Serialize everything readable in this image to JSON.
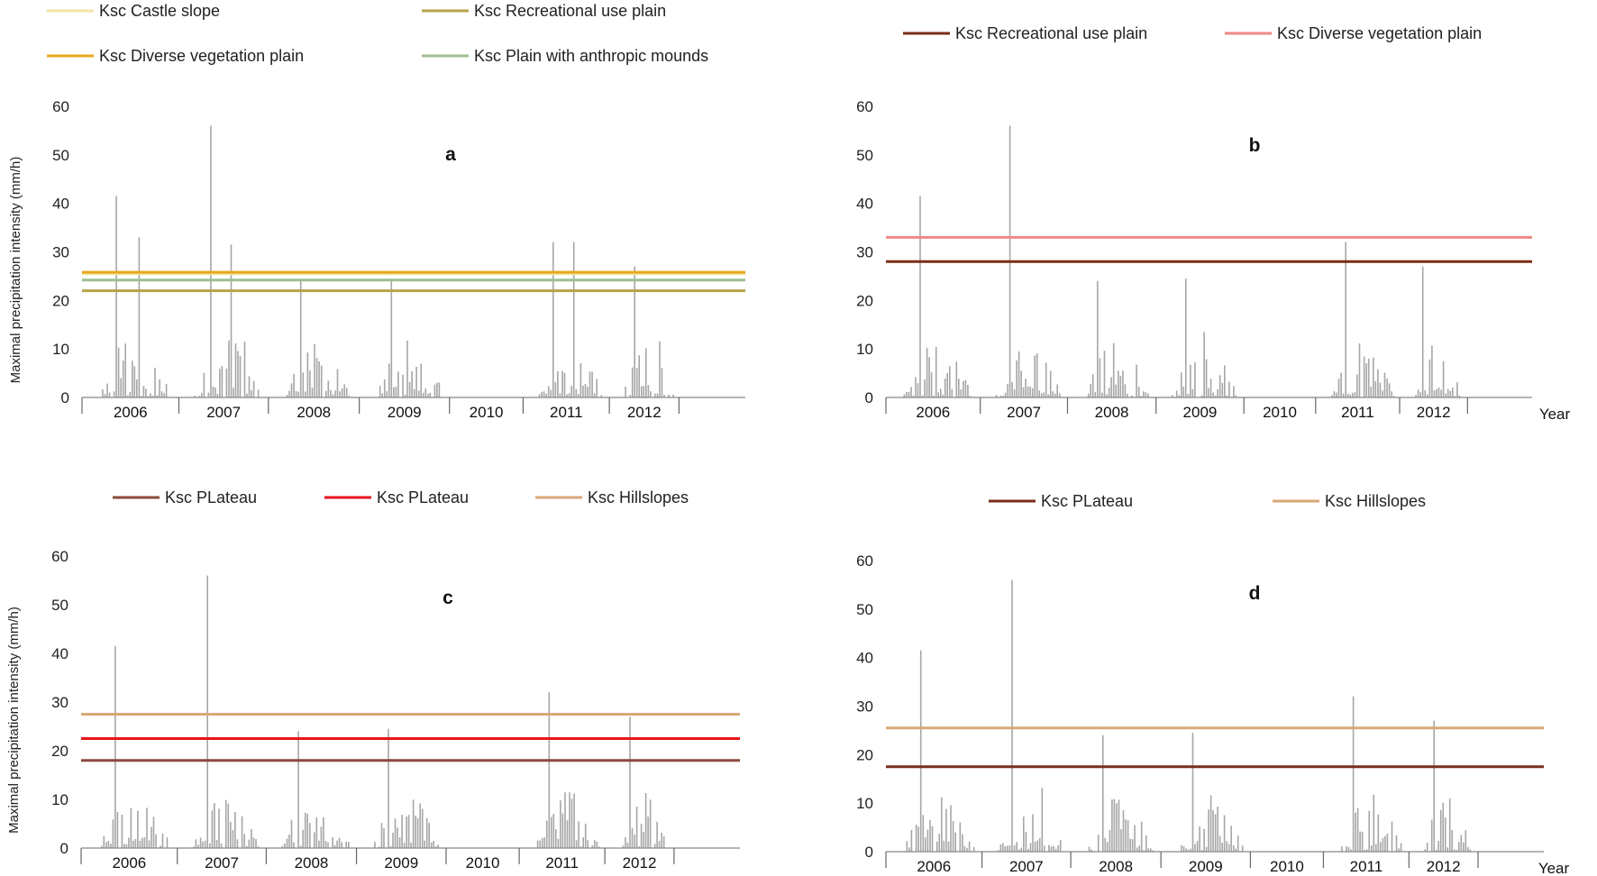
{
  "figure": {
    "ylabel": "Maximal precipitation intensity (mm/h)",
    "x_unit_label": "Year"
  },
  "chart_data": [
    {
      "type": "bar",
      "panel": "a",
      "title": "a",
      "ylabel": "Maximal precipitation intensity (mm/h)",
      "xlabel": "",
      "ylim": [
        0,
        60
      ],
      "yticks": [
        0,
        10,
        20,
        30,
        40,
        50,
        60
      ],
      "categories": [
        "2006",
        "2007",
        "2008",
        "2009",
        "2010",
        "2011",
        "2012"
      ],
      "series_name": "Maximal precipitation intensity",
      "bar_color": "#a6a6a6",
      "peaks": [
        {
          "year": "2006",
          "value": 41.5
        },
        {
          "year": "2006",
          "value": 33
        },
        {
          "year": "2007",
          "value": 56
        },
        {
          "year": "2007",
          "value": 31.5
        },
        {
          "year": "2008",
          "value": 24
        },
        {
          "year": "2009",
          "value": 24.5
        },
        {
          "year": "2011",
          "value": 32
        },
        {
          "year": "2011",
          "value": 32
        },
        {
          "year": "2012",
          "value": 27
        }
      ],
      "thresholds": [
        {
          "name": "Ksc Castle slope",
          "value": 25.5,
          "color": "#f3e5a6"
        },
        {
          "name": "Ksc Recreational use plain",
          "value": 22,
          "color": "#b6a44a"
        },
        {
          "name": "Ksc Diverse vegetation plain",
          "value": 25.8,
          "color": "#e6a81c"
        },
        {
          "name": "Ksc Plain with anthropic mounds",
          "value": 24.2,
          "color": "#9fbf8f"
        }
      ]
    },
    {
      "type": "bar",
      "panel": "b",
      "title": "b",
      "ylabel": "",
      "xlabel": "Year",
      "ylim": [
        0,
        60
      ],
      "yticks": [
        0,
        10,
        20,
        30,
        40,
        50,
        60
      ],
      "categories": [
        "2006",
        "2007",
        "2008",
        "2009",
        "2010",
        "2011",
        "2012"
      ],
      "series_name": "Maximal precipitation intensity",
      "bar_color": "#a6a6a6",
      "peaks": [
        {
          "year": "2006",
          "value": 41.5
        },
        {
          "year": "2007",
          "value": 56
        },
        {
          "year": "2008",
          "value": 24
        },
        {
          "year": "2009",
          "value": 24.5
        },
        {
          "year": "2011",
          "value": 32
        },
        {
          "year": "2012",
          "value": 27
        }
      ],
      "thresholds": [
        {
          "name": "Ksc Recreational use plain",
          "value": 28,
          "color": "#7a2e12"
        },
        {
          "name": "Ksc Diverse vegetation plain",
          "value": 33,
          "color": "#ee8a86"
        }
      ]
    },
    {
      "type": "bar",
      "panel": "c",
      "title": "c",
      "ylabel": "Maximal precipitation intensity (mm/h)",
      "xlabel": "",
      "ylim": [
        0,
        60
      ],
      "yticks": [
        0,
        10,
        20,
        30,
        40,
        50,
        60
      ],
      "categories": [
        "2006",
        "2007",
        "2008",
        "2009",
        "2010",
        "2011",
        "2012"
      ],
      "series_name": "Maximal precipitation intensity",
      "bar_color": "#a6a6a6",
      "peaks": [
        {
          "year": "2006",
          "value": 41.5
        },
        {
          "year": "2007",
          "value": 56
        },
        {
          "year": "2008",
          "value": 24
        },
        {
          "year": "2009",
          "value": 24.5
        },
        {
          "year": "2011",
          "value": 32
        },
        {
          "year": "2012",
          "value": 27
        }
      ],
      "thresholds": [
        {
          "name": "Ksc PLateau",
          "value": 18,
          "color": "#8b4a3c"
        },
        {
          "name": "Ksc PLateau",
          "value": 22.5,
          "color": "#e8141c"
        },
        {
          "name": "Ksc Hillslopes",
          "value": 27.5,
          "color": "#d9a877"
        }
      ]
    },
    {
      "type": "bar",
      "panel": "d",
      "title": "d",
      "ylabel": "",
      "xlabel": "Year",
      "ylim": [
        0,
        60
      ],
      "yticks": [
        0,
        10,
        20,
        30,
        40,
        50,
        60
      ],
      "categories": [
        "2006",
        "2007",
        "2008",
        "2009",
        "2010",
        "2011",
        "2012"
      ],
      "series_name": "Maximal precipitation intensity",
      "bar_color": "#a6a6a6",
      "peaks": [
        {
          "year": "2006",
          "value": 41.5
        },
        {
          "year": "2007",
          "value": 56
        },
        {
          "year": "2008",
          "value": 24
        },
        {
          "year": "2009",
          "value": 24.5
        },
        {
          "year": "2011",
          "value": 32
        },
        {
          "year": "2012",
          "value": 27
        }
      ],
      "thresholds": [
        {
          "name": "Ksc PLateau",
          "value": 17.5,
          "color": "#7a2e1e"
        },
        {
          "name": "Ksc Hillslopes",
          "value": 25.5,
          "color": "#d9a877"
        }
      ]
    }
  ]
}
